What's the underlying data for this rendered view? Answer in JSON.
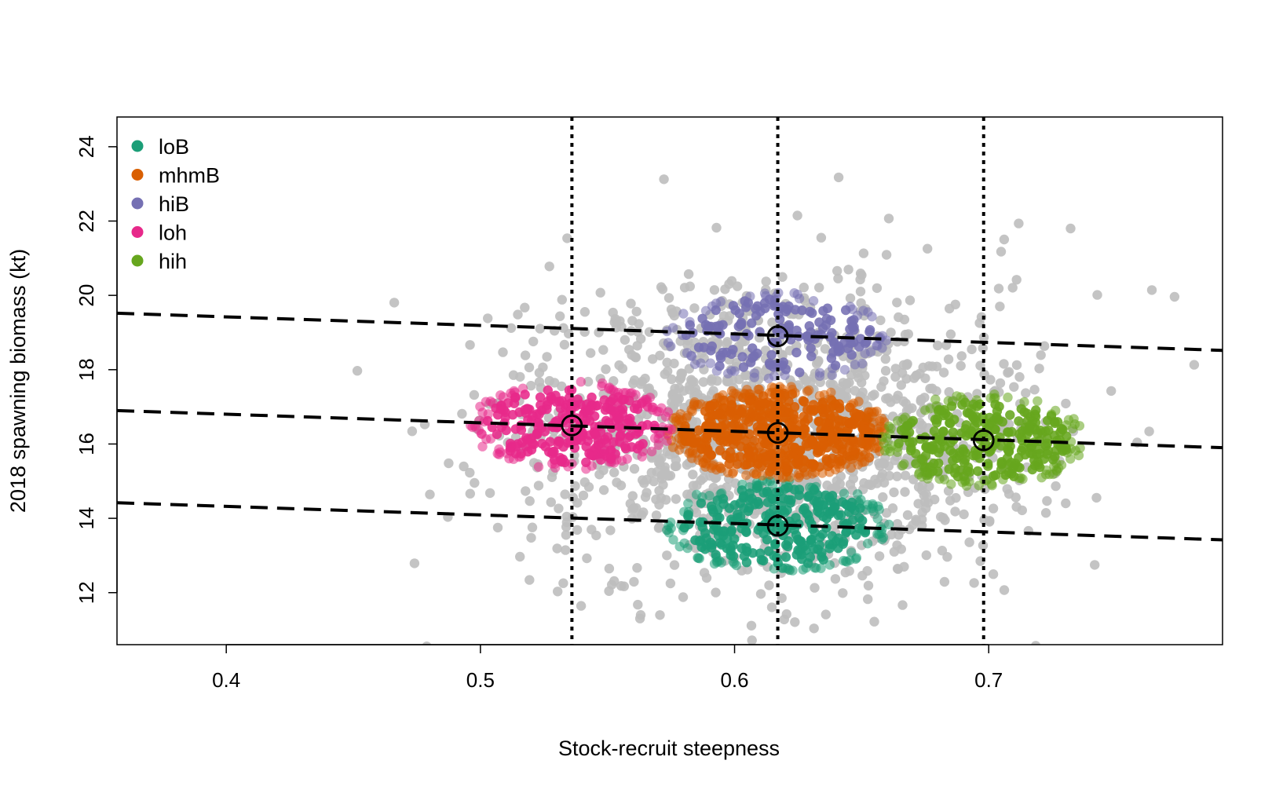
{
  "chart_data": {
    "type": "scatter",
    "title": "",
    "xlabel": "Stock-recruit steepness",
    "ylabel": "2018 spawning biomass (kt)",
    "xlim": [
      0.357,
      0.792
    ],
    "ylim": [
      10.6,
      24.8
    ],
    "x_ticks": [
      0.4,
      0.5,
      0.6,
      0.7
    ],
    "x_tick_labels": [
      "0.4",
      "0.5",
      "0.6",
      "0.7"
    ],
    "y_ticks": [
      12,
      14,
      16,
      18,
      20,
      22,
      24
    ],
    "y_tick_labels": [
      "12",
      "14",
      "16",
      "18",
      "20",
      "22",
      "24"
    ],
    "grid": false,
    "legend_position": "top-left",
    "colors": {
      "background": "#bebebe",
      "loB": "#1b9e77",
      "mhmB": "#d95f02",
      "hiB": "#7570b3",
      "loh": "#e7298a",
      "hih": "#66a61e"
    },
    "legend": [
      {
        "key": "loB",
        "label": "loB"
      },
      {
        "key": "mhmB",
        "label": "mhmB"
      },
      {
        "key": "hiB",
        "label": "hiB"
      },
      {
        "key": "loh",
        "label": "loh"
      },
      {
        "key": "hih",
        "label": "hih"
      }
    ],
    "background_cloud": {
      "n": 1400,
      "center": [
        0.617,
        16.3
      ],
      "sd": [
        0.052,
        2.05
      ]
    },
    "series": [
      {
        "name": "loB",
        "center": [
          0.617,
          13.8
        ],
        "half_width": [
          0.044,
          1.25
        ],
        "n": 330
      },
      {
        "name": "mhmB",
        "center": [
          0.617,
          16.3
        ],
        "half_width": [
          0.044,
          1.25
        ],
        "n": 600
      },
      {
        "name": "hiB",
        "center": [
          0.617,
          18.9
        ],
        "half_width": [
          0.044,
          1.2
        ],
        "n": 200
      },
      {
        "name": "loh",
        "center": [
          0.536,
          16.5
        ],
        "half_width": [
          0.04,
          1.2
        ],
        "n": 330
      },
      {
        "name": "hih",
        "center": [
          0.698,
          16.1
        ],
        "half_width": [
          0.04,
          1.25
        ],
        "n": 330
      }
    ],
    "highlight_points": [
      {
        "x": 0.536,
        "y": 16.5
      },
      {
        "x": 0.617,
        "y": 16.3
      },
      {
        "x": 0.617,
        "y": 18.9
      },
      {
        "x": 0.617,
        "y": 13.8
      },
      {
        "x": 0.698,
        "y": 16.1
      }
    ],
    "vertical_lines": [
      0.536,
      0.617,
      0.698
    ],
    "regression_lines": [
      {
        "x": [
          0.357,
          0.792
        ],
        "y": [
          19.52,
          18.52
        ]
      },
      {
        "x": [
          0.357,
          0.792
        ],
        "y": [
          16.9,
          15.9
        ]
      },
      {
        "x": [
          0.357,
          0.792
        ],
        "y": [
          14.42,
          13.42
        ]
      }
    ]
  }
}
